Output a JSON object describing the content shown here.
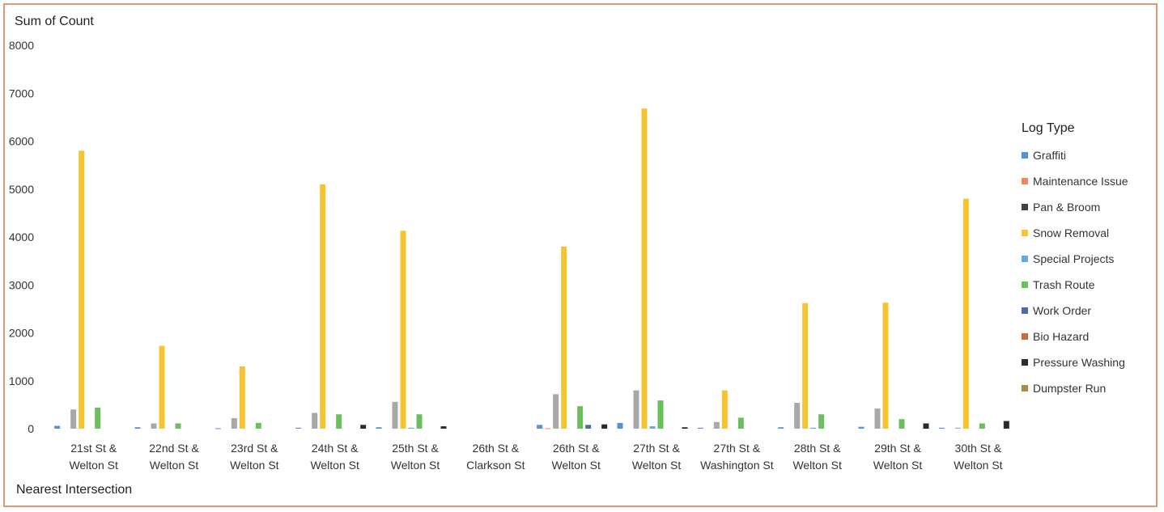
{
  "chart_data": {
    "type": "bar",
    "ylabel": "Sum of Count",
    "xlabel": "Nearest Intersection",
    "ylim": [
      0,
      8000
    ],
    "yticks": [
      "0",
      "1000",
      "2000",
      "3000",
      "4000",
      "5000",
      "6000",
      "7000",
      "8000"
    ],
    "grid": false,
    "legend_title": "Log Type",
    "legend_position": "right",
    "categories": [
      [
        "21st St &",
        "Welton St"
      ],
      [
        "22nd St &",
        "Welton St"
      ],
      [
        "23rd St &",
        "Welton St"
      ],
      [
        "24th St &",
        "Welton St"
      ],
      [
        "25th St &",
        "Welton St"
      ],
      [
        "26th St &",
        "Clarkson St"
      ],
      [
        "26th St &",
        "Welton St"
      ],
      [
        "27th St &",
        "Welton St"
      ],
      [
        "27th St &",
        "Washington St"
      ],
      [
        "28th St &",
        "Welton St"
      ],
      [
        "29th St &",
        "Welton St"
      ],
      [
        "30th St &",
        "Welton St"
      ]
    ],
    "series": [
      {
        "name": "Graffiti",
        "color": "#5b8fd4",
        "values": [
          60,
          30,
          10,
          20,
          30,
          0,
          80,
          120,
          20,
          30,
          40,
          20
        ]
      },
      {
        "name": "Maintenance Issue",
        "color": "#f08a5d",
        "values": [
          0,
          0,
          0,
          0,
          0,
          0,
          10,
          0,
          0,
          0,
          0,
          0
        ]
      },
      {
        "name": "Pan & Broom",
        "color": "#404040",
        "values": [
          400,
          110,
          220,
          330,
          560,
          0,
          720,
          800,
          140,
          540,
          420,
          20
        ]
      },
      {
        "name": "Snow Removal",
        "color": "#f7c431",
        "values": [
          5800,
          1730,
          1300,
          5100,
          4130,
          0,
          3800,
          6680,
          800,
          2620,
          2630,
          4800
        ]
      },
      {
        "name": "Special Projects",
        "color": "#66a9dd",
        "values": [
          0,
          0,
          0,
          0,
          20,
          0,
          0,
          50,
          0,
          20,
          0,
          0
        ]
      },
      {
        "name": "Trash Route",
        "color": "#6cbf5e",
        "values": [
          440,
          110,
          120,
          300,
          300,
          0,
          470,
          590,
          230,
          300,
          200,
          110
        ]
      },
      {
        "name": "Work Order",
        "color": "#4a6fa5",
        "values": [
          0,
          0,
          0,
          0,
          0,
          0,
          80,
          0,
          0,
          0,
          0,
          0
        ]
      },
      {
        "name": "Bio Hazard",
        "color": "#c46a49",
        "values": [
          0,
          0,
          0,
          0,
          0,
          0,
          0,
          0,
          0,
          0,
          0,
          0
        ]
      },
      {
        "name": "Pressure Washing",
        "color": "#2b2b2b",
        "values": [
          0,
          0,
          0,
          80,
          50,
          0,
          90,
          30,
          0,
          0,
          110,
          160
        ]
      },
      {
        "name": "Dumpster Run",
        "color": "#a58d4f",
        "values": [
          0,
          0,
          0,
          0,
          0,
          0,
          0,
          0,
          0,
          0,
          0,
          0
        ]
      }
    ],
    "series_style": {
      "Pan & Broom": "#a8a8a8"
    }
  }
}
